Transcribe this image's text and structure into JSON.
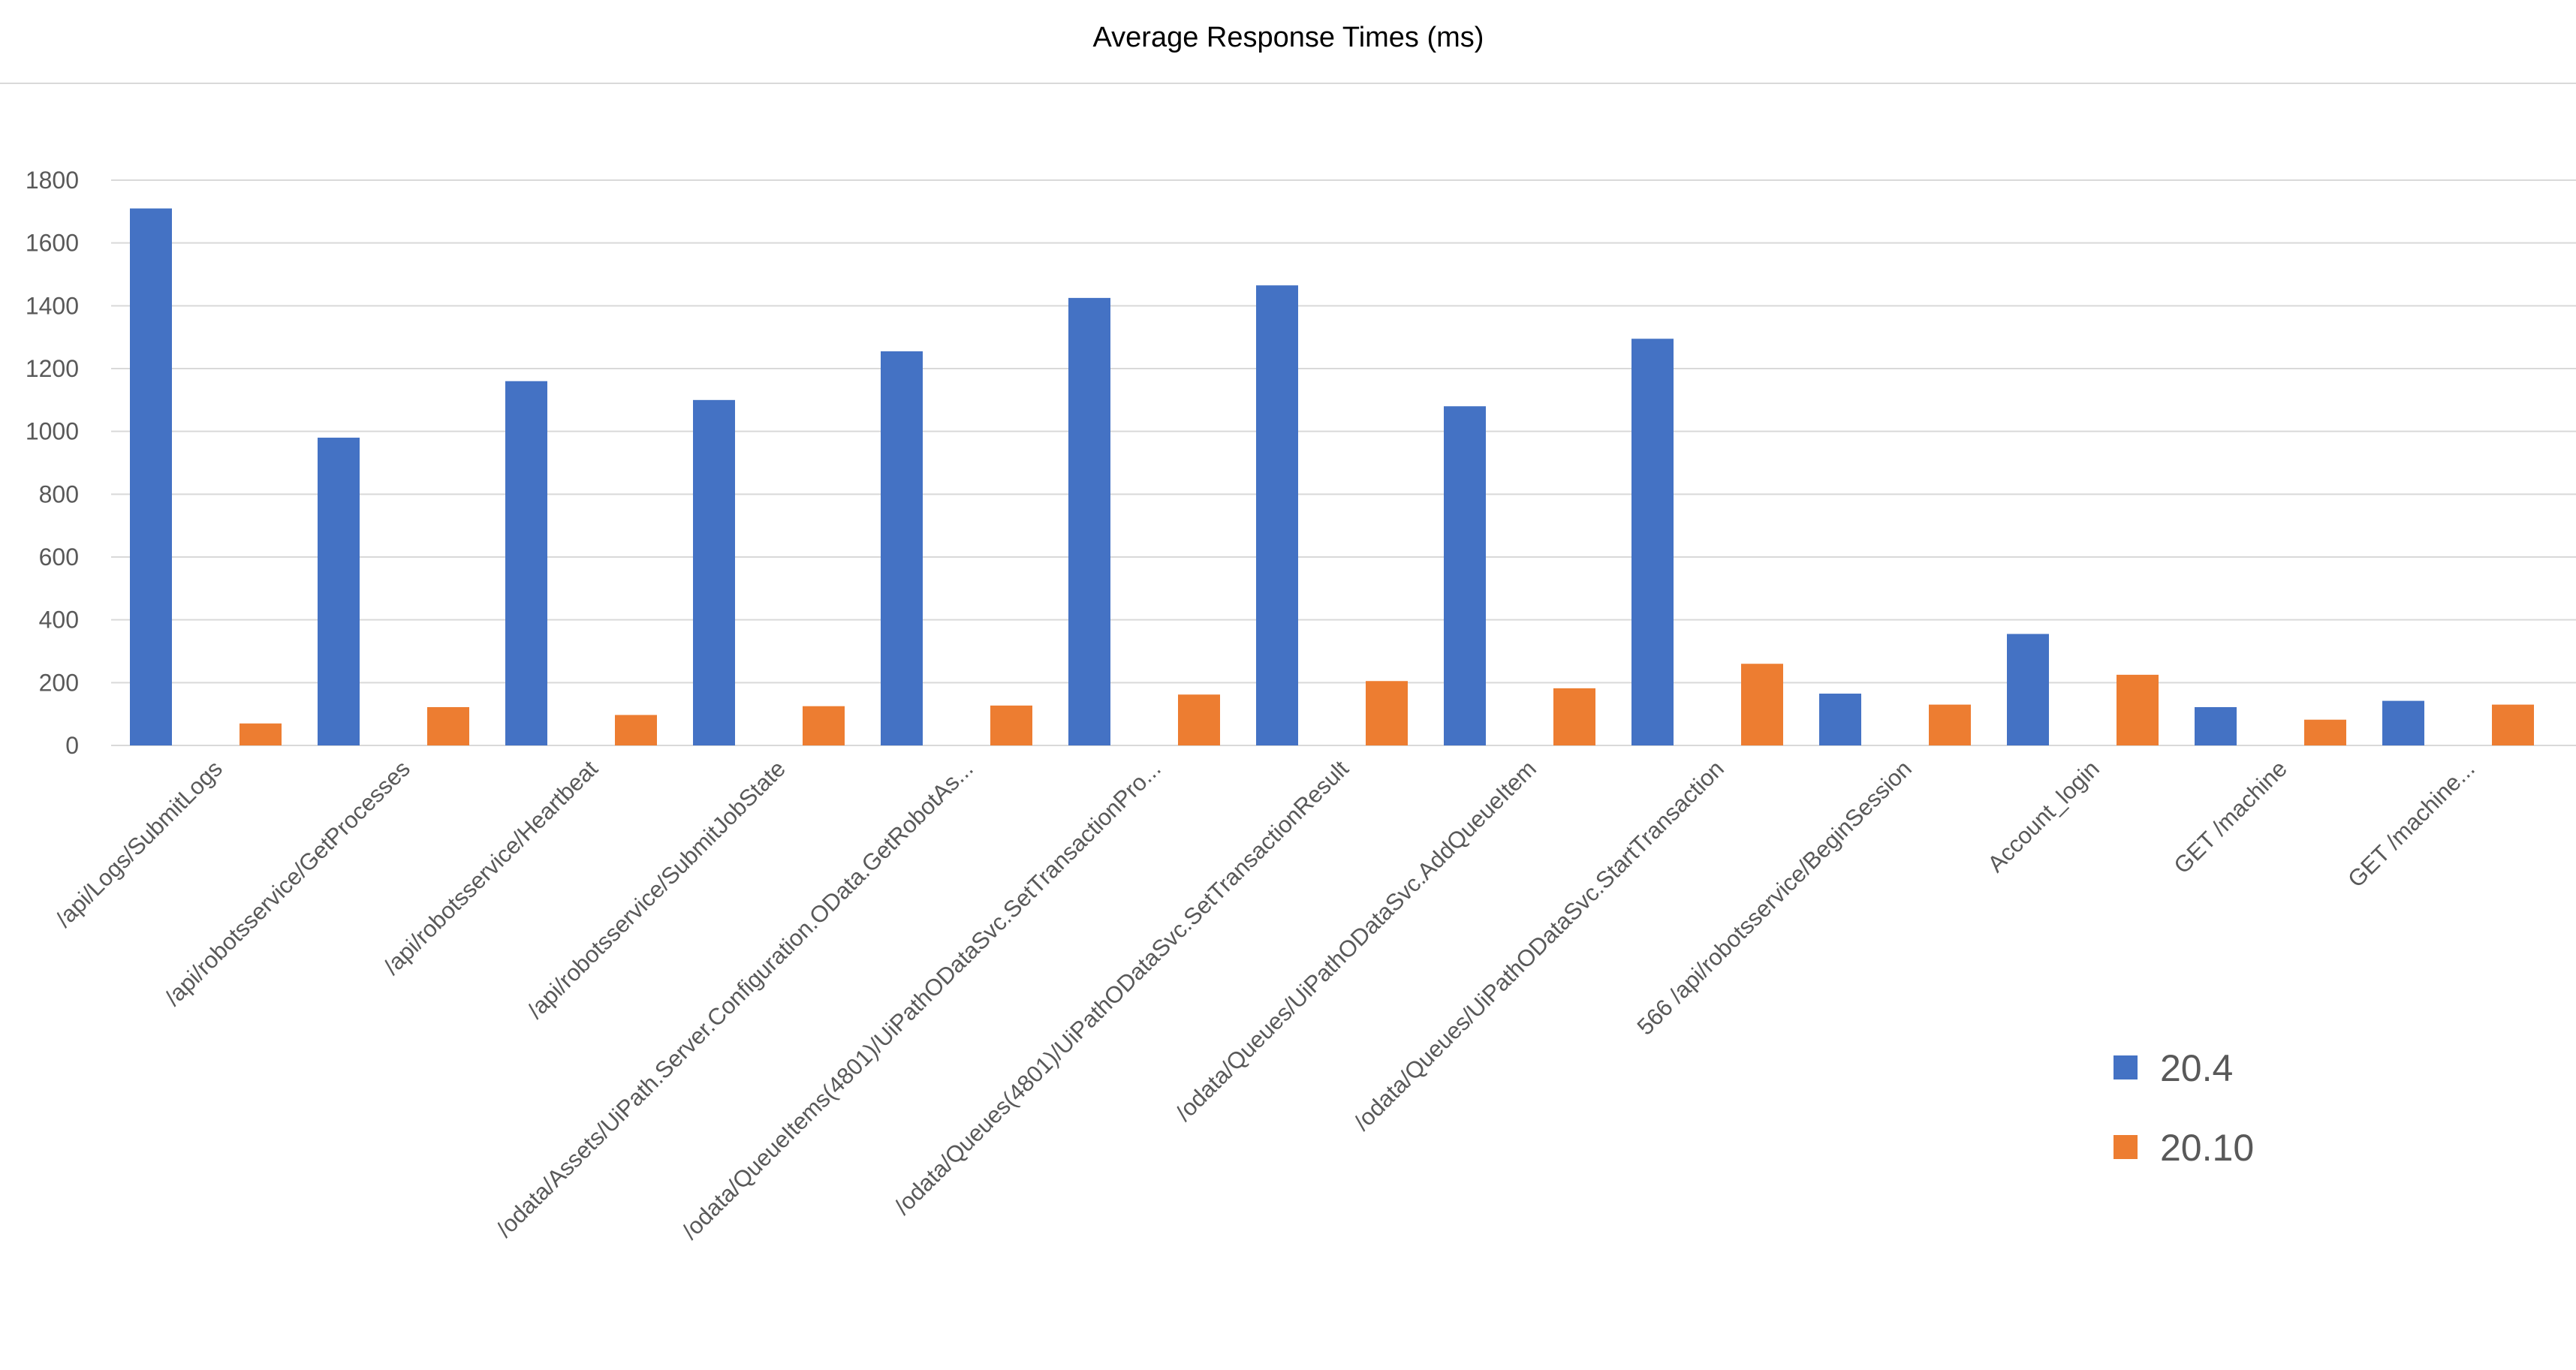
{
  "chart_data": {
    "type": "bar",
    "title": "Average Response Times (ms)",
    "xlabel": "",
    "ylabel": "",
    "ylim": [
      0,
      1800
    ],
    "yticks": [
      0,
      200,
      400,
      600,
      800,
      1000,
      1200,
      1400,
      1600,
      1800
    ],
    "grid": true,
    "legend_position": "bottom-right",
    "categories": [
      "/api/Logs/SubmitLogs",
      "/api/robotsservice/GetProcesses",
      "/api/robotsservice/Heartbeat",
      "/api/robotsservice/SubmitJobState",
      "/odata/Assets/UiPath.Server.Configuration.OData.GetRobotAs...",
      "/odata/QueueItems(4801)/UiPathODataSvc.SetTransactionPro...",
      "/odata/Queues(4801)/UiPathODataSvc.SetTransactionResult",
      "/odata/Queues/UiPathODataSvc.AddQueueItem",
      "/odata/Queues/UiPathODataSvc.StartTransaction",
      "566 /api/robotsservice/BeginSession",
      "Account_login",
      "GET /machine",
      "GET /machine..."
    ],
    "series": [
      {
        "name": "20.4",
        "color": "#4472C4",
        "values": [
          1710,
          980,
          1160,
          1100,
          1255,
          1425,
          1465,
          1080,
          1295,
          165,
          355,
          122,
          142
        ]
      },
      {
        "name": "20.10",
        "color": "#ED7D31",
        "values": [
          70,
          122,
          97,
          125,
          127,
          162,
          205,
          182,
          260,
          130,
          225,
          82,
          130
        ]
      }
    ]
  }
}
